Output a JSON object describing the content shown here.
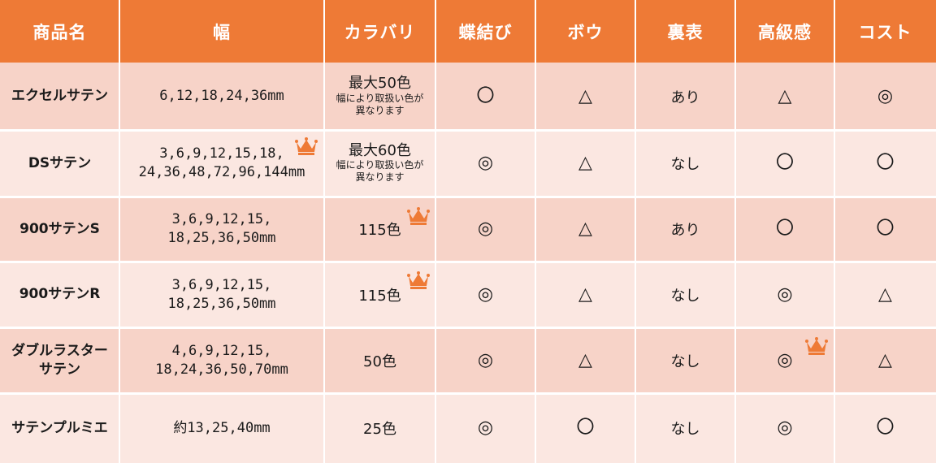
{
  "header": {
    "columns": [
      "商品名",
      "幅",
      "カラバリ",
      "蝶結び",
      "ボウ",
      "裏表",
      "高級感",
      "コスト"
    ]
  },
  "rows": [
    {
      "name": [
        "エクセルサテン"
      ],
      "width": [
        "6,12,18,24,36mm"
      ],
      "colors": {
        "main": "最大50色",
        "note": [
          "幅により取扱い色が",
          "異なります"
        ]
      },
      "bow_tie": "〇",
      "bow": "△",
      "reversible": "あり",
      "luxury": "△",
      "cost": "◎"
    },
    {
      "name": [
        "DSサテン"
      ],
      "width": [
        "3,6,9,12,15,18,",
        "24,36,48,72,96,144mm"
      ],
      "colors": {
        "main": "最大60色",
        "note": [
          "幅により取扱い色が",
          "異なります"
        ]
      },
      "bow_tie": "◎",
      "bow": "△",
      "reversible": "なし",
      "luxury": "〇",
      "cost": "〇"
    },
    {
      "name": [
        "900サテンS"
      ],
      "width": [
        "3,6,9,12,15,",
        "18,25,36,50mm"
      ],
      "colors": {
        "main": "115色"
      },
      "bow_tie": "◎",
      "bow": "△",
      "reversible": "あり",
      "luxury": "〇",
      "cost": "〇"
    },
    {
      "name": [
        "900サテンR"
      ],
      "width": [
        "3,6,9,12,15,",
        "18,25,36,50mm"
      ],
      "colors": {
        "main": "115色"
      },
      "bow_tie": "◎",
      "bow": "△",
      "reversible": "なし",
      "luxury": "◎",
      "cost": "△"
    },
    {
      "name": [
        "ダブルラスター",
        "サテン"
      ],
      "width": [
        "4,6,9,12,15,",
        "18,24,36,50,70mm"
      ],
      "colors": {
        "main": "50色"
      },
      "bow_tie": "◎",
      "bow": "△",
      "reversible": "なし",
      "luxury": "◎",
      "cost": "△"
    },
    {
      "name": [
        "サテンプルミエ"
      ],
      "width": [
        "約13,25,40mm"
      ],
      "colors": {
        "main": "25色"
      },
      "bow_tie": "◎",
      "bow": "〇",
      "reversible": "なし",
      "luxury": "◎",
      "cost": "〇"
    }
  ],
  "colors": {
    "header_bg": "#ee7a36",
    "row_odd": "#f7d3c8",
    "row_even": "#fbe7e1",
    "crown": "#ee7a36"
  }
}
